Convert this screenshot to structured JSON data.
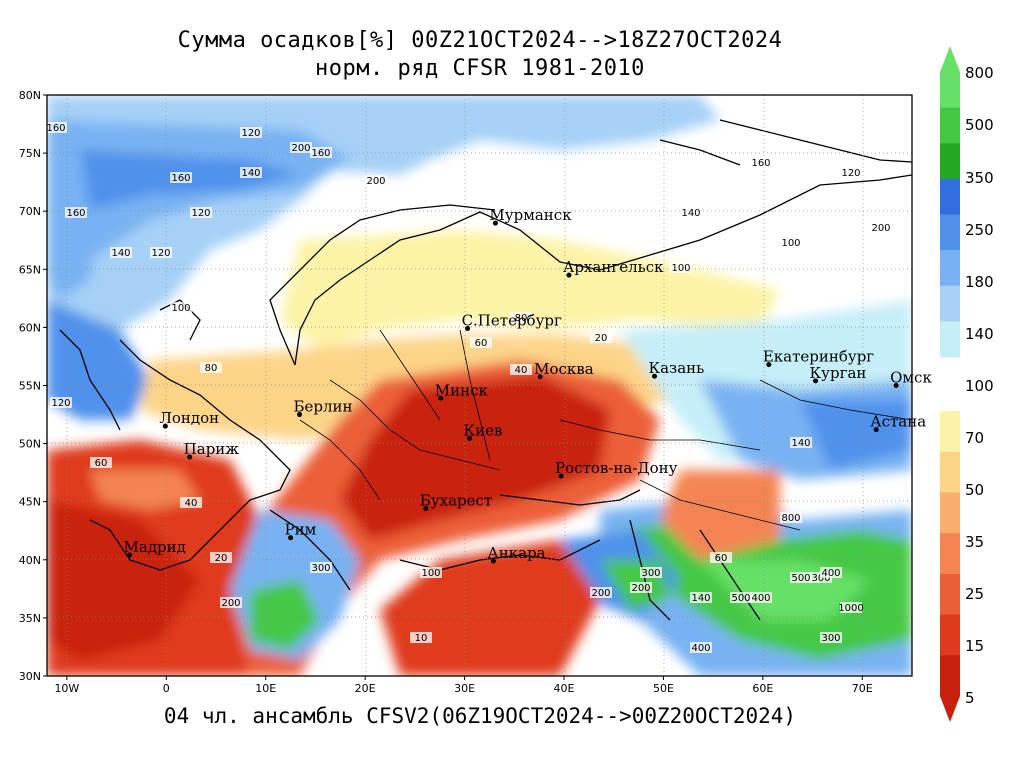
{
  "title_line1": "Сумма осадков[%] 00Z21OCT2024-->18Z27OCT2024",
  "title_line2": "норм. ряд CFSR 1981-2010",
  "footer": "04 чл. ансамбль CFSV2(06Z19OCT2024-->00Z20OCT2024)",
  "lat_labels": [
    "80N",
    "75N",
    "70N",
    "65N",
    "60N",
    "55N",
    "50N",
    "45N",
    "40N",
    "35N",
    "30N"
  ],
  "lon_labels": [
    "10W",
    "0",
    "10E",
    "20E",
    "30E",
    "40E",
    "50E",
    "60E",
    "70E"
  ],
  "colorbar": {
    "labels": [
      "800",
      "500",
      "350",
      "250",
      "180",
      "140",
      "100",
      "70",
      "50",
      "35",
      "25",
      "15",
      "5"
    ],
    "colors_upper": [
      "#66e066",
      "#44c844",
      "#22a822",
      "#2f6fe0",
      "#4f91ec",
      "#78b2f2",
      "#a6d0f6",
      "#c6eef8"
    ],
    "colors_lower": [
      "#fdf3a6",
      "#fcd488",
      "#f9ae6c",
      "#f48452",
      "#ec5e38",
      "#e03a1e",
      "#c9200c"
    ]
  },
  "cities": [
    {
      "name": "Мурманск",
      "lon": 33.1,
      "lat": 68.97
    },
    {
      "name": "Архангельск",
      "lon": 40.5,
      "lat": 64.5
    },
    {
      "name": "С.Петербург",
      "lon": 30.3,
      "lat": 59.9
    },
    {
      "name": "Москва",
      "lon": 37.6,
      "lat": 55.75
    },
    {
      "name": "Казань",
      "lon": 49.1,
      "lat": 55.8
    },
    {
      "name": "Екатеринбург",
      "lon": 60.6,
      "lat": 56.8
    },
    {
      "name": "Курган",
      "lon": 65.3,
      "lat": 55.4
    },
    {
      "name": "Омск",
      "lon": 73.4,
      "lat": 55.0
    },
    {
      "name": "Астана",
      "lon": 71.4,
      "lat": 51.2
    },
    {
      "name": "Минск",
      "lon": 27.6,
      "lat": 53.9
    },
    {
      "name": "Берлин",
      "lon": 13.4,
      "lat": 52.5
    },
    {
      "name": "Лондон",
      "lon": -0.1,
      "lat": 51.5
    },
    {
      "name": "Париж",
      "lon": 2.35,
      "lat": 48.85
    },
    {
      "name": "Киев",
      "lon": 30.5,
      "lat": 50.45
    },
    {
      "name": "Ростов-на-Дону",
      "lon": 39.7,
      "lat": 47.2
    },
    {
      "name": "Бухарест",
      "lon": 26.1,
      "lat": 44.4
    },
    {
      "name": "Мадрид",
      "lon": -3.7,
      "lat": 40.4
    },
    {
      "name": "Рим",
      "lon": 12.5,
      "lat": 41.9
    },
    {
      "name": "Анкара",
      "lon": 32.9,
      "lat": 39.9
    }
  ],
  "contour_values": [
    "160",
    "120",
    "200",
    "140",
    "160",
    "160",
    "120",
    "200",
    "160",
    "140",
    "120",
    "100",
    "80",
    "60",
    "40",
    "20",
    "10",
    "120",
    "200",
    "100",
    "140",
    "200",
    "300",
    "400",
    "500",
    "1000",
    "300",
    "200",
    "400",
    "300",
    "60",
    "80",
    "100",
    "140",
    "160",
    "100",
    "120",
    "200",
    "140",
    "60",
    "40",
    "20",
    "300",
    "500",
    "400",
    "800"
  ]
}
